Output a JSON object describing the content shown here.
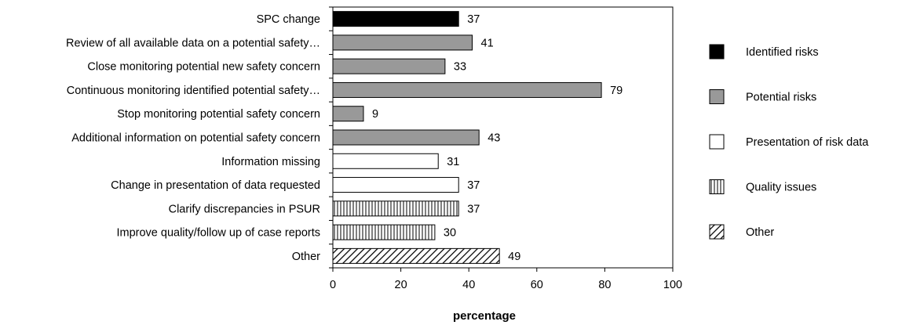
{
  "chart_data": {
    "type": "bar",
    "orientation": "horizontal",
    "title": "",
    "xlabel": "percentage",
    "ylabel": "",
    "xlim": [
      0,
      100
    ],
    "xticks": [
      "0",
      "20",
      "40",
      "60",
      "80",
      "100"
    ],
    "grid": false,
    "legend_position": "right",
    "categories": [
      "SPC change",
      "Review of all available data on a potential safety…",
      "Close monitoring potential new safety concern",
      "Continuous monitoring identified potential safety…",
      "Stop monitoring potential safety concern",
      "Additional information on potential safety concern",
      "Information missing",
      "Change in presentation of data requested",
      "Clarify discrepancies in PSUR",
      "Improve quality/follow up of case reports",
      "Other"
    ],
    "values": [
      37,
      41,
      33,
      79,
      9,
      43,
      31,
      37,
      37,
      30,
      49
    ],
    "value_labels": [
      "37",
      "41",
      "33",
      "79",
      "9",
      "43",
      "31",
      "37",
      "37",
      "30",
      "49"
    ],
    "groups": [
      "identified",
      "potential",
      "potential",
      "potential",
      "potential",
      "potential",
      "presentation",
      "presentation",
      "quality",
      "quality",
      "other"
    ],
    "legend": [
      {
        "key": "identified",
        "label": "Identified risks",
        "fill": "#000000",
        "pattern": "solid"
      },
      {
        "key": "potential",
        "label": "Potential risks",
        "fill": "#999999",
        "pattern": "solid"
      },
      {
        "key": "presentation",
        "label": "Presentation of risk data",
        "fill": "#ffffff",
        "pattern": "solid"
      },
      {
        "key": "quality",
        "label": "Quality issues",
        "fill": "#ffffff",
        "pattern": "vertical-lines"
      },
      {
        "key": "other",
        "label": "Other",
        "fill": "#ffffff",
        "pattern": "diagonal-lines"
      }
    ]
  }
}
